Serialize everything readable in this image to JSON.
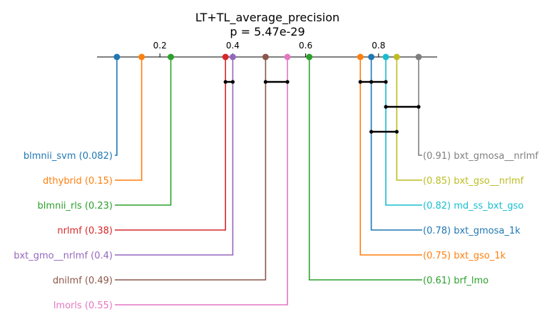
{
  "chart_data": {
    "type": "critical-difference",
    "title": "LT+TL_average_precision",
    "subtitle": "p = 5.47e-29",
    "xlim": [
      0.0,
      1.0
    ],
    "ticks": [
      0.2,
      0.4,
      0.6,
      0.8
    ],
    "tick_labels": [
      "0.2",
      "0.4",
      "0.6",
      "0.8"
    ],
    "left_label_format": "{name} ({value})",
    "right_label_format": "({value}) {name}",
    "methods": [
      {
        "name": "blmnii_svm",
        "value": 0.082,
        "color": "#1f77b4",
        "side": "left"
      },
      {
        "name": "dthybrid",
        "value": 0.15,
        "color": "#ff7f0e",
        "side": "left"
      },
      {
        "name": "blmnii_rls",
        "value": 0.23,
        "color": "#2ca02c",
        "side": "left"
      },
      {
        "name": "nrlmf",
        "value": 0.38,
        "color": "#d62728",
        "side": "left"
      },
      {
        "name": "bxt_gmo__nrlmf",
        "value": 0.4,
        "color": "#9467bd",
        "side": "left"
      },
      {
        "name": "dnilmf",
        "value": 0.49,
        "color": "#8c564b",
        "side": "left"
      },
      {
        "name": "lmorls",
        "value": 0.55,
        "color": "#e377c2",
        "side": "left"
      },
      {
        "name": "bxt_gmosa__nrlmf",
        "value": 0.91,
        "color": "#7f7f7f",
        "side": "right"
      },
      {
        "name": "bxt_gso__nrlmf",
        "value": 0.85,
        "color": "#bcbd22",
        "side": "right"
      },
      {
        "name": "md_ss_bxt_gso",
        "value": 0.82,
        "color": "#17becf",
        "side": "right"
      },
      {
        "name": "bxt_gmosa_1k",
        "value": 0.78,
        "color": "#1f77b4",
        "side": "right"
      },
      {
        "name": "bxt_gso_1k",
        "value": 0.75,
        "color": "#ff7f0e",
        "side": "right"
      },
      {
        "name": "brf_lmo",
        "value": 0.61,
        "color": "#2ca02c",
        "side": "right"
      }
    ],
    "groups": [
      {
        "members": [
          "nrlmf",
          "bxt_gmo__nrlmf"
        ]
      },
      {
        "members": [
          "dnilmf",
          "lmorls"
        ]
      },
      {
        "members": [
          "bxt_gso_1k",
          "bxt_gmosa_1k",
          "md_ss_bxt_gso"
        ]
      },
      {
        "members": [
          "md_ss_bxt_gso",
          "bxt_gmosa__nrlmf"
        ]
      },
      {
        "members": [
          "bxt_gmosa_1k",
          "bxt_gso__nrlmf"
        ]
      }
    ]
  }
}
